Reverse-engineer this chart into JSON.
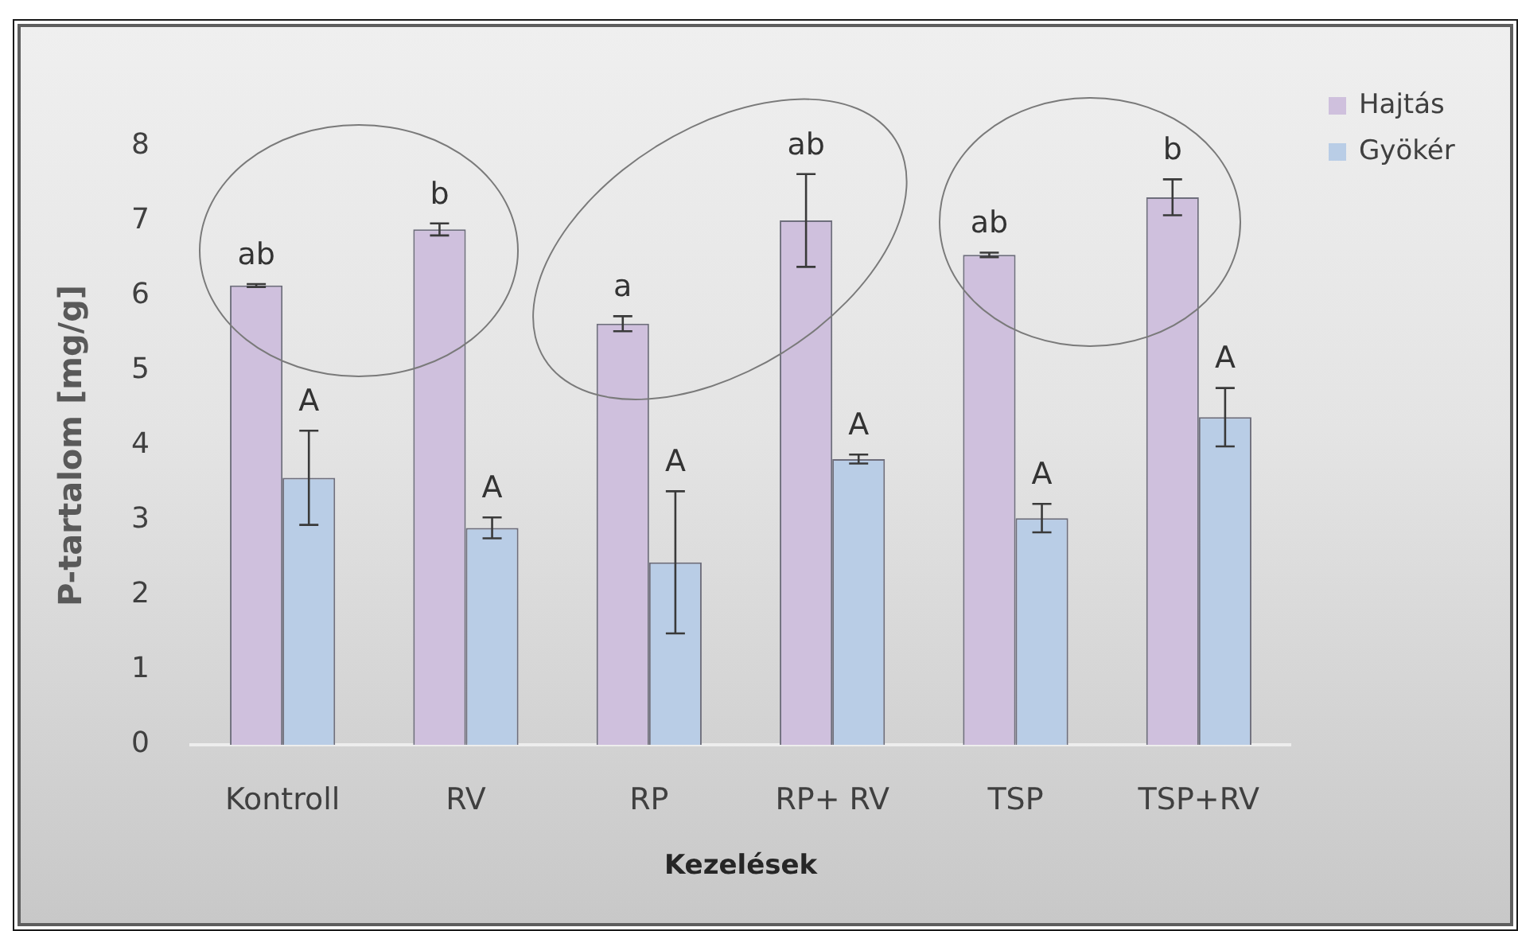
{
  "chart_data": {
    "type": "bar",
    "categories": [
      "Kontroll",
      "RV",
      "RP",
      "RP+ RV",
      "TSP",
      "TSP+RV"
    ],
    "xlabel": "Kezelések",
    "ylabel": "P-tartalom [mg/g]",
    "ylim": [
      0,
      8
    ],
    "yticks": [
      0,
      1,
      2,
      3,
      4,
      5,
      6,
      7,
      8
    ],
    "grid": false,
    "legend": "top right",
    "series": [
      {
        "name": "Hajtás",
        "color": "#cfc0dd",
        "values": [
          6.14,
          6.89,
          5.63,
          7.01,
          6.55,
          7.32
        ],
        "errors": [
          0.02,
          0.08,
          0.1,
          0.62,
          0.03,
          0.24
        ],
        "value_labels": [
          "ab",
          "b",
          "a",
          "ab",
          "ab",
          "b"
        ]
      },
      {
        "name": "Gyökér",
        "color": "#b9cde6",
        "values": [
          3.57,
          2.9,
          2.44,
          3.82,
          3.03,
          4.38
        ],
        "errors": [
          0.63,
          0.14,
          0.95,
          0.06,
          0.19,
          0.39
        ],
        "value_labels": [
          "A",
          "A",
          "A",
          "A",
          "A",
          "A"
        ]
      }
    ]
  }
}
